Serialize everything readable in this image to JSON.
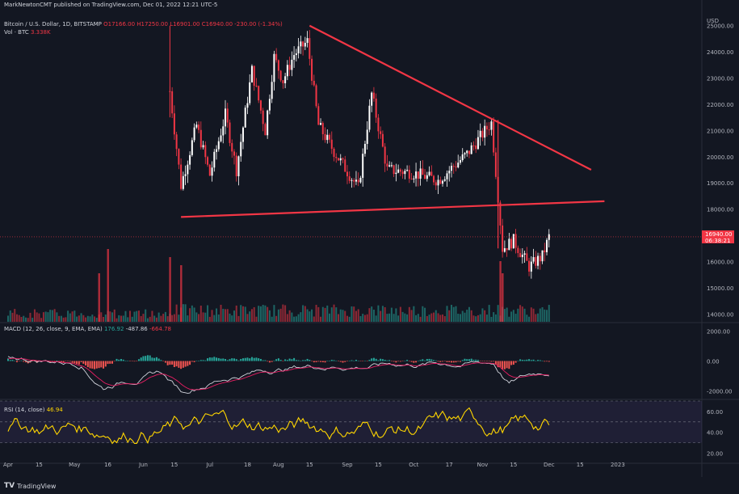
{
  "publisher": {
    "text": "MarkNewtonCMT published on TradingView.com, Dec 01, 2022 12:21 UTC-5"
  },
  "symbol": {
    "title": "Bitcoin / U.S. Dollar, 1D, BITSTAMP",
    "o": "O17166.00",
    "h": "H17250.00",
    "l": "L16901.00",
    "c": "C16940.00",
    "chg": "-230.00 (-1.34%)",
    "vol_label": "Vol · BTC",
    "vol_value": "3.338K"
  },
  "macd": {
    "label": "MACD (12, 26, close, 9, EMA, EMA)",
    "v1": "176.92",
    "v2": "-487.86",
    "v3": "-664.78"
  },
  "rsi": {
    "label": "RSI (14, close)",
    "value": "46.94"
  },
  "footer": {
    "brand": "TradingView"
  },
  "colors": {
    "bg": "#131722",
    "up": "#ffffff",
    "down": "#f23645",
    "trend": "#f23645",
    "rsi": "#ffd600",
    "macd_pos": "#26a69a",
    "macd_neg": "#ef5350",
    "vol_up": "#26a69a"
  },
  "chart_data": [
    {
      "type": "candlestick",
      "title": "Bitcoin / U.S. Dollar, 1D, BITSTAMP",
      "currency": "USD",
      "y_ticks": [
        14000,
        15000,
        16000,
        17000,
        18000,
        19000,
        20000,
        21000,
        22000,
        23000,
        24000,
        25000
      ],
      "ylim": [
        13700,
        25300
      ],
      "x_ticks": [
        "Apr",
        "15",
        "May",
        "16",
        "Jun",
        "15",
        "Jul",
        "18",
        "Aug",
        "15",
        "Sep",
        "15",
        "Oct",
        "17",
        "Nov",
        "15",
        "Dec",
        "15",
        "2023"
      ],
      "last_price": "16940.00",
      "countdown": "06:38:21",
      "approx_close_path": [
        [
          "Jun 13",
          22500
        ],
        [
          "Jun 18",
          18900
        ],
        [
          "Jun 25",
          21200
        ],
        [
          "Jul 1",
          19300
        ],
        [
          "Jul 8",
          21600
        ],
        [
          "Jul 13",
          19500
        ],
        [
          "Jul 20",
          23300
        ],
        [
          "Jul 26",
          21000
        ],
        [
          "Jul 30",
          23800
        ],
        [
          "Aug 3",
          22900
        ],
        [
          "Aug 8",
          23900
        ],
        [
          "Aug 14",
          24400
        ],
        [
          "Aug 19",
          21200
        ],
        [
          "Aug 26",
          20200
        ],
        [
          "Sep 6",
          18800
        ],
        [
          "Sep 12",
          22400
        ],
        [
          "Sep 19",
          19500
        ],
        [
          "Sep 30",
          19400
        ],
        [
          "Oct 12",
          19100
        ],
        [
          "Oct 25",
          20100
        ],
        [
          "Nov 5",
          21300
        ],
        [
          "Nov 8",
          18500
        ],
        [
          "Nov 10",
          16500
        ],
        [
          "Nov 15",
          16800
        ],
        [
          "Nov 22",
          15800
        ],
        [
          "Nov 28",
          16200
        ],
        [
          "Dec 1",
          16940
        ]
      ],
      "trendlines": [
        {
          "name": "upper",
          "from": [
            "Aug 15",
            25000
          ],
          "to": [
            "Dec 20",
            19500
          ]
        },
        {
          "name": "lower",
          "from": [
            "Jun 18",
            17700
          ],
          "to": [
            "Dec 26",
            18300
          ]
        }
      ]
    },
    {
      "type": "histogram+line",
      "title": "MACD (12, 26, close, 9, EMA, EMA)",
      "y_ticks": [
        2000,
        0,
        -2000
      ],
      "ylim": [
        -2500,
        2500
      ]
    },
    {
      "type": "line",
      "title": "RSI (14, close)",
      "y_ticks": [
        60,
        40,
        20
      ],
      "ylim": [
        15,
        70
      ],
      "bands": [
        30,
        50
      ],
      "last": 46.94
    }
  ]
}
